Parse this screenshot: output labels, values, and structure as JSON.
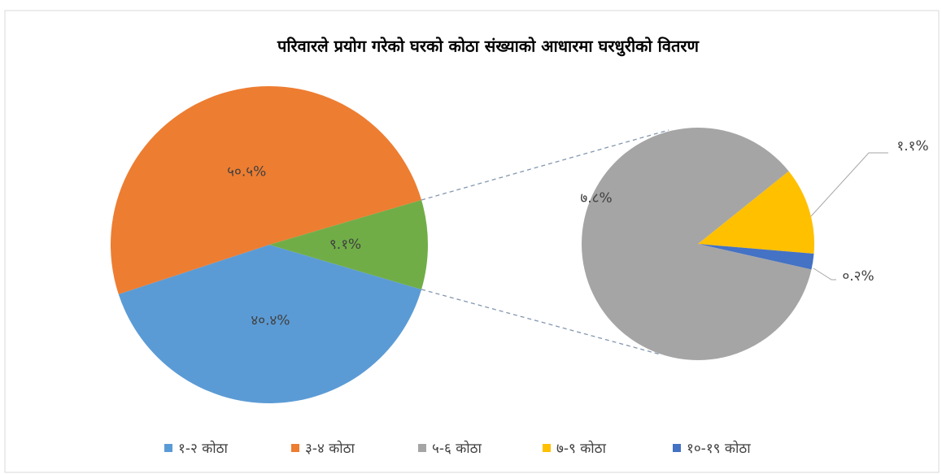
{
  "chart_data": {
    "type": "pie-of-pie",
    "title": "परिवारले प्रयोग गरेको घरको कोठा संख्याको आधारमा घरधुरीको वितरण",
    "categories": [
      "१-२ कोठा",
      "३-४ कोठा",
      "५-६ कोठा",
      "७-९ कोठा",
      "१०-१९ कोठा"
    ],
    "colors": [
      "#5b9bd5",
      "#ed7d31",
      "#a5a5a5",
      "#ffc000",
      "#4472c4"
    ],
    "main": {
      "values": [
        40.4,
        50.5,
        9.1
      ],
      "value_labels": [
        "४०.४%",
        "५०.५%",
        "९.१%"
      ],
      "other_color": "#70ad47"
    },
    "secondary": {
      "values": [
        7.8,
        1.1,
        0.2
      ],
      "value_labels": [
        "७.८%",
        "१.१%",
        "०.२%"
      ]
    },
    "legend": "bottom"
  }
}
